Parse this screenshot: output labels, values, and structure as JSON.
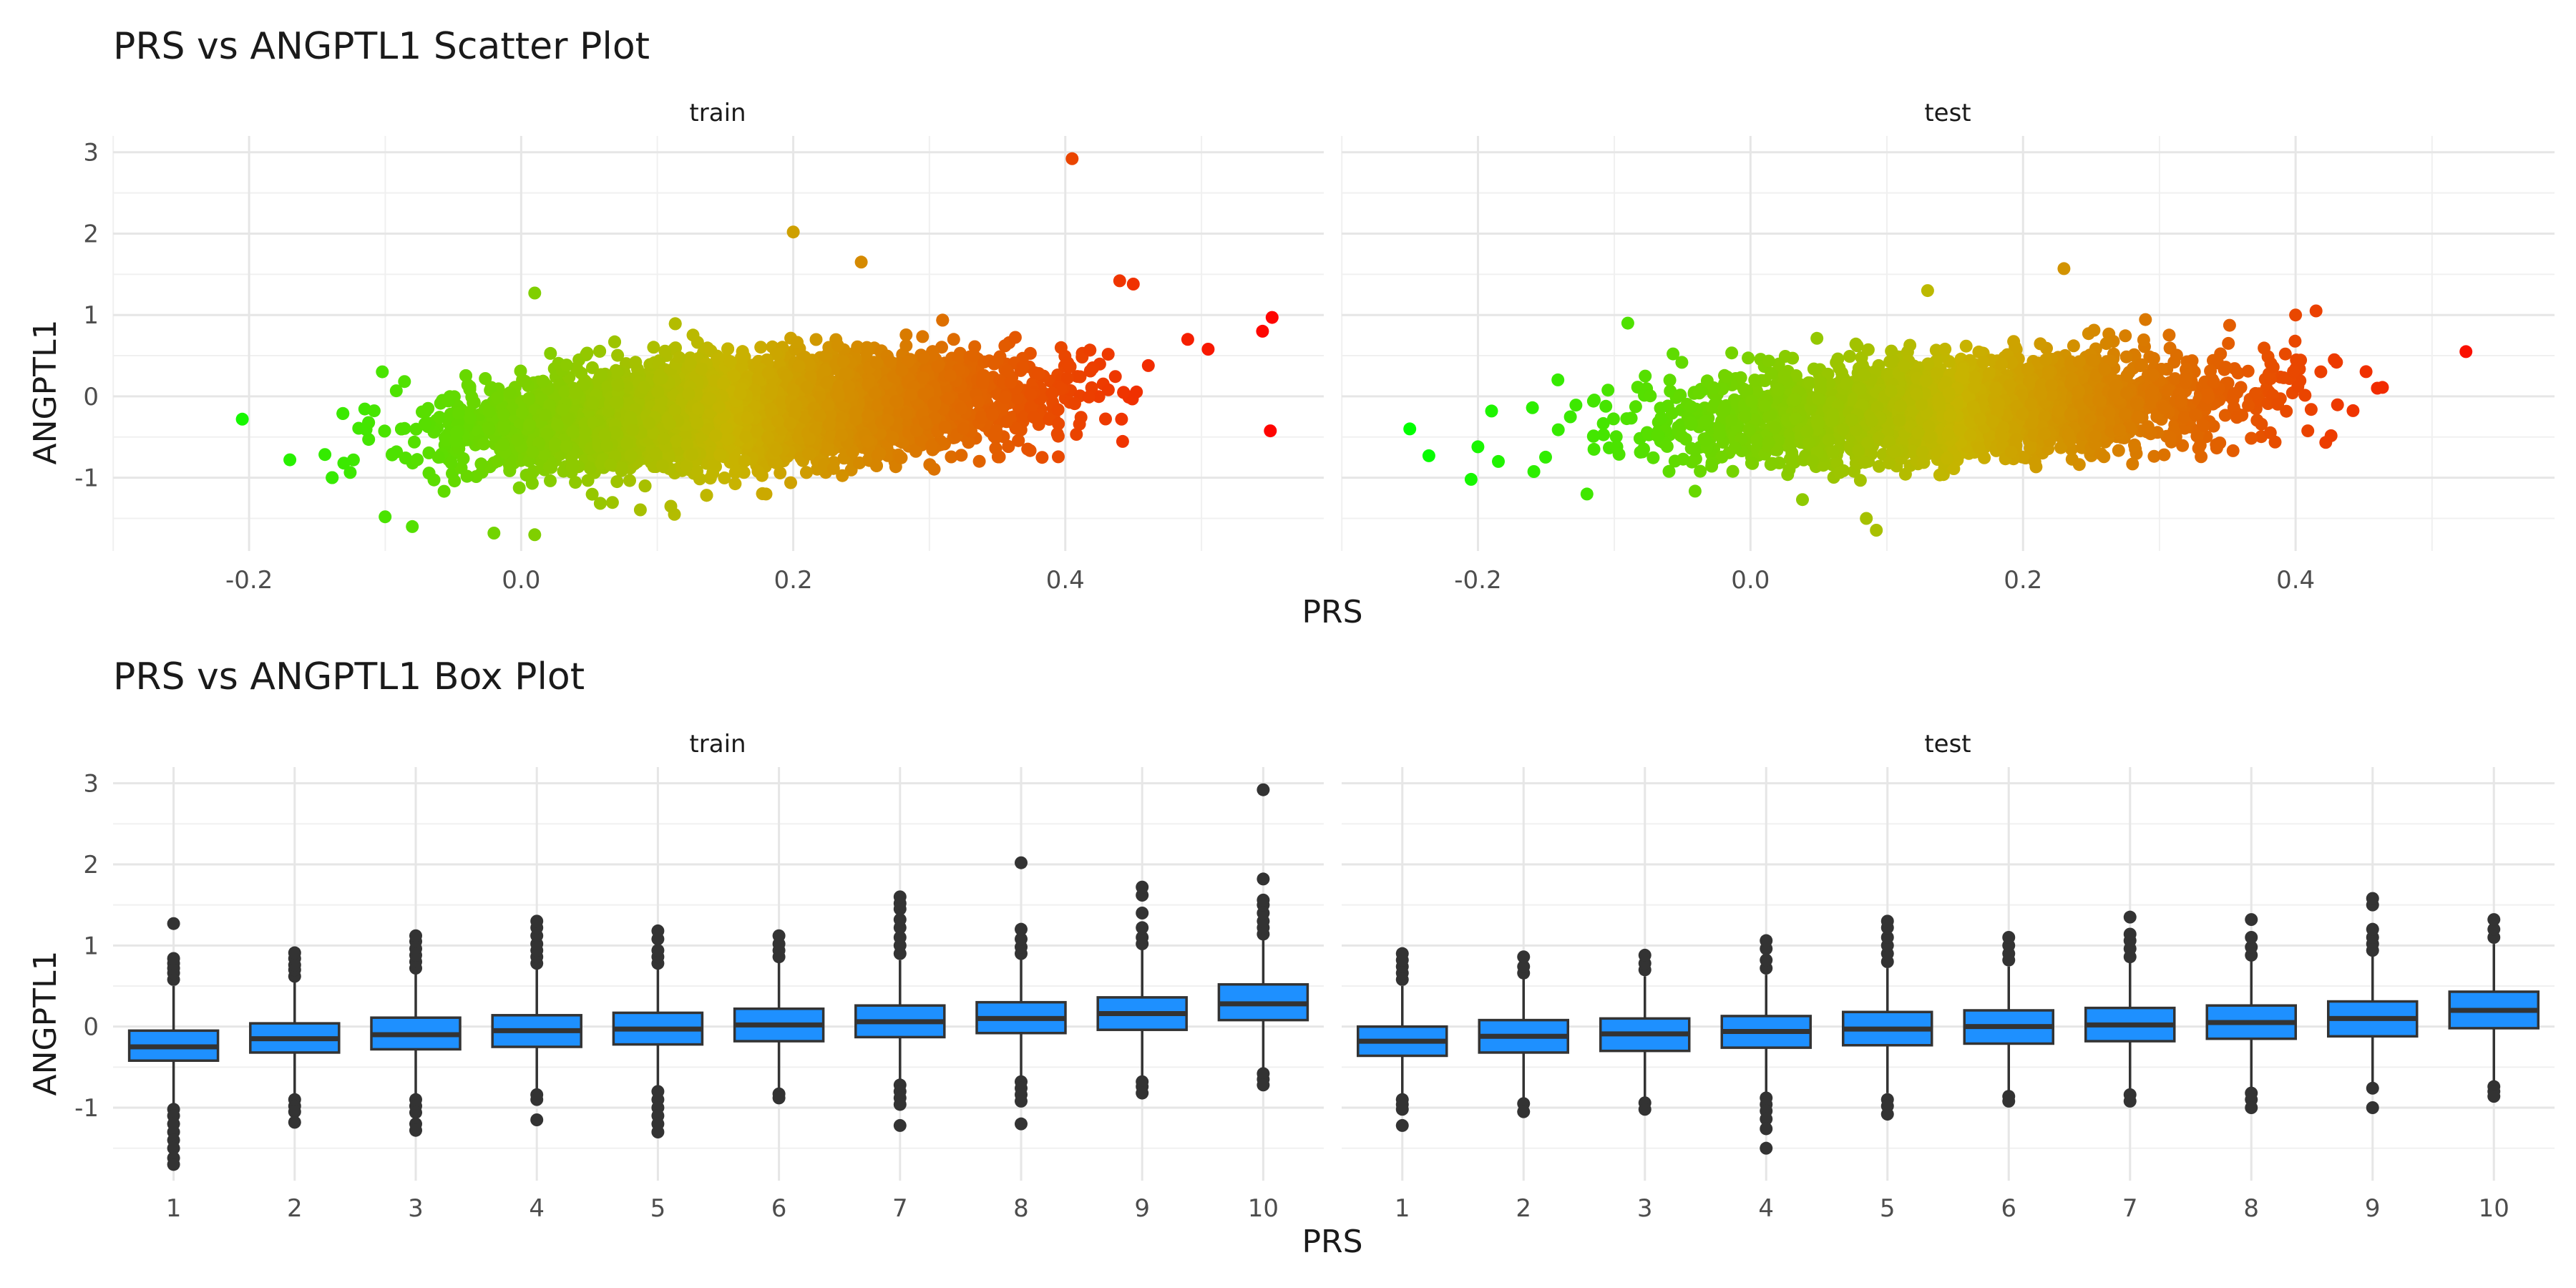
{
  "chart_data": [
    {
      "type": "scatter",
      "title": "PRS vs ANGPTL1 Scatter Plot",
      "xlabel": "PRS",
      "ylabel": "ANGPTL1",
      "xlim": [
        -0.3,
        0.59
      ],
      "ylim": [
        -1.9,
        3.2
      ],
      "xticks": [
        -0.2,
        0.0,
        0.2,
        0.4
      ],
      "xtick_labels": [
        "-0.2",
        "0.0",
        "0.2",
        "0.4"
      ],
      "yticks": [
        -1,
        0,
        1,
        2,
        3
      ],
      "ytick_labels": [
        "-1",
        "0",
        "1",
        "2",
        "3"
      ],
      "grid": true,
      "legend": "none",
      "color_scale": {
        "low": "#00ff00",
        "mid": "#c8b400",
        "high": "#ff0000",
        "by": "x"
      },
      "facets": [
        {
          "label": "train",
          "trend": {
            "slope": 1.9,
            "intercept": -0.35,
            "sd_y": 0.3,
            "x_mean": 0.17,
            "x_sd": 0.1
          },
          "highlight_points": [
            {
              "x": -0.205,
              "y": -0.28
            },
            {
              "x": -0.17,
              "y": -0.78
            },
            {
              "x": -0.1,
              "y": -1.48
            },
            {
              "x": -0.08,
              "y": -1.6
            },
            {
              "x": -0.02,
              "y": -1.68
            },
            {
              "x": 0.01,
              "y": -1.7
            },
            {
              "x": 0.01,
              "y": 1.27
            },
            {
              "x": 0.2,
              "y": 2.02
            },
            {
              "x": 0.405,
              "y": 2.92
            },
            {
              "x": 0.545,
              "y": 0.8
            },
            {
              "x": 0.552,
              "y": 0.97
            },
            {
              "x": 0.505,
              "y": 0.58
            },
            {
              "x": 0.49,
              "y": 0.7
            },
            {
              "x": 0.44,
              "y": 1.42
            },
            {
              "x": 0.45,
              "y": 1.38
            },
            {
              "x": 0.25,
              "y": 1.65
            },
            {
              "x": 0.18,
              "y": -1.2
            },
            {
              "x": 0.11,
              "y": -1.35
            }
          ]
        },
        {
          "label": "test",
          "trend": {
            "slope": 1.6,
            "intercept": -0.28,
            "sd_y": 0.3,
            "x_mean": 0.15,
            "x_sd": 0.1
          },
          "highlight_points": [
            {
              "x": -0.25,
              "y": -0.4
            },
            {
              "x": -0.236,
              "y": -0.73
            },
            {
              "x": -0.205,
              "y": -1.02
            },
            {
              "x": -0.2,
              "y": -0.62
            },
            {
              "x": -0.185,
              "y": -0.8
            },
            {
              "x": -0.19,
              "y": -0.18
            },
            {
              "x": -0.16,
              "y": -0.14
            },
            {
              "x": -0.12,
              "y": -1.2
            },
            {
              "x": -0.09,
              "y": 0.9
            },
            {
              "x": 0.085,
              "y": -1.5
            },
            {
              "x": 0.23,
              "y": 1.57
            },
            {
              "x": 0.13,
              "y": 1.3
            },
            {
              "x": 0.4,
              "y": 1.0
            },
            {
              "x": 0.415,
              "y": 1.05
            },
            {
              "x": 0.43,
              "y": 0.42
            },
            {
              "x": 0.46,
              "y": 0.1
            },
            {
              "x": 0.525,
              "y": 0.55
            },
            {
              "x": 0.33,
              "y": -0.6
            }
          ]
        }
      ]
    },
    {
      "type": "box",
      "title": "PRS vs ANGPTL1 Box Plot",
      "xlabel": "PRS",
      "ylabel": "ANGPTL1",
      "ylim": [
        -1.9,
        3.2
      ],
      "yticks": [
        -1,
        0,
        1,
        2,
        3
      ],
      "ytick_labels": [
        "-1",
        "0",
        "1",
        "2",
        "3"
      ],
      "categories": [
        "1",
        "2",
        "3",
        "4",
        "5",
        "6",
        "7",
        "8",
        "9",
        "10"
      ],
      "box_color": "#1e90ff",
      "grid": true,
      "facets": [
        {
          "label": "train",
          "boxes": [
            {
              "q1": -0.42,
              "median": -0.25,
              "q3": -0.05,
              "whisker_low": -0.98,
              "whisker_high": 0.5,
              "outliers": [
                -1.02,
                -1.1,
                -1.2,
                -1.3,
                -1.4,
                -1.5,
                -1.62,
                -1.7,
                0.58,
                0.66,
                0.72,
                0.78,
                0.84,
                1.27
              ]
            },
            {
              "q1": -0.32,
              "median": -0.15,
              "q3": 0.04,
              "whisker_low": -0.85,
              "whisker_high": 0.56,
              "outliers": [
                -0.9,
                -0.98,
                -1.05,
                -1.18,
                0.62,
                0.7,
                0.76,
                0.84,
                0.91
              ]
            },
            {
              "q1": -0.28,
              "median": -0.1,
              "q3": 0.11,
              "whisker_low": -0.86,
              "whisker_high": 0.66,
              "outliers": [
                -0.9,
                -0.98,
                -1.06,
                -1.2,
                -1.28,
                0.72,
                0.8,
                0.88,
                0.96,
                1.05,
                1.12
              ]
            },
            {
              "q1": -0.25,
              "median": -0.05,
              "q3": 0.14,
              "whisker_low": -0.8,
              "whisker_high": 0.72,
              "outliers": [
                -0.84,
                -0.9,
                -1.15,
                0.78,
                0.86,
                0.94,
                1.02,
                1.12,
                1.22,
                1.3
              ]
            },
            {
              "q1": -0.22,
              "median": -0.03,
              "q3": 0.17,
              "whisker_low": -0.75,
              "whisker_high": 0.72,
              "outliers": [
                -0.8,
                -0.9,
                -1.0,
                -1.1,
                -1.2,
                -1.3,
                0.78,
                0.86,
                0.94,
                1.08,
                1.18
              ]
            },
            {
              "q1": -0.18,
              "median": 0.02,
              "q3": 0.22,
              "whisker_low": -0.78,
              "whisker_high": 0.8,
              "outliers": [
                -0.83,
                -0.88,
                0.86,
                0.94,
                1.02,
                1.12
              ]
            },
            {
              "q1": -0.13,
              "median": 0.06,
              "q3": 0.26,
              "whisker_low": -0.68,
              "whisker_high": 0.82,
              "outliers": [
                -0.72,
                -0.8,
                -0.88,
                -0.96,
                -1.22,
                0.9,
                1.0,
                1.1,
                1.22,
                1.32,
                1.45,
                1.52,
                1.6
              ]
            },
            {
              "q1": -0.08,
              "median": 0.1,
              "q3": 0.3,
              "whisker_low": -0.62,
              "whisker_high": 0.84,
              "outliers": [
                -0.68,
                -0.76,
                -0.84,
                -0.92,
                -1.2,
                0.9,
                0.98,
                1.08,
                1.2,
                2.02
              ]
            },
            {
              "q1": -0.04,
              "median": 0.16,
              "q3": 0.36,
              "whisker_low": -0.62,
              "whisker_high": 0.95,
              "outliers": [
                -0.68,
                -0.74,
                -0.82,
                1.02,
                1.1,
                1.22,
                1.4,
                1.62,
                1.72
              ]
            },
            {
              "q1": 0.08,
              "median": 0.28,
              "q3": 0.52,
              "whisker_low": -0.52,
              "whisker_high": 1.08,
              "outliers": [
                -0.58,
                -0.65,
                -0.72,
                1.14,
                1.22,
                1.3,
                1.4,
                1.5,
                1.56,
                1.82,
                2.92
              ]
            }
          ]
        },
        {
          "label": "test",
          "boxes": [
            {
              "q1": -0.36,
              "median": -0.18,
              "q3": 0.0,
              "whisker_low": -0.86,
              "whisker_high": 0.5,
              "outliers": [
                -0.9,
                -0.96,
                -1.02,
                -1.22,
                0.58,
                0.66,
                0.74,
                0.82,
                0.9
              ]
            },
            {
              "q1": -0.32,
              "median": -0.12,
              "q3": 0.08,
              "whisker_low": -0.9,
              "whisker_high": 0.6,
              "outliers": [
                -0.95,
                -1.05,
                0.66,
                0.74,
                0.86
              ]
            },
            {
              "q1": -0.3,
              "median": -0.09,
              "q3": 0.1,
              "whisker_low": -0.88,
              "whisker_high": 0.62,
              "outliers": [
                -0.94,
                -1.02,
                0.7,
                0.78,
                0.88
              ]
            },
            {
              "q1": -0.26,
              "median": -0.06,
              "q3": 0.13,
              "whisker_low": -0.82,
              "whisker_high": 0.64,
              "outliers": [
                -0.88,
                -0.96,
                -1.04,
                -1.14,
                -1.26,
                -1.5,
                0.72,
                0.82,
                0.96,
                1.06
              ]
            },
            {
              "q1": -0.23,
              "median": -0.03,
              "q3": 0.18,
              "whisker_low": -0.82,
              "whisker_high": 0.72,
              "outliers": [
                -0.9,
                -0.98,
                -1.08,
                0.8,
                0.9,
                1.0,
                1.1,
                1.22,
                1.3
              ]
            },
            {
              "q1": -0.21,
              "median": 0.0,
              "q3": 0.2,
              "whisker_low": -0.82,
              "whisker_high": 0.74,
              "outliers": [
                -0.86,
                -0.92,
                0.82,
                0.9,
                1.0,
                1.1
              ]
            },
            {
              "q1": -0.18,
              "median": 0.02,
              "q3": 0.23,
              "whisker_low": -0.8,
              "whisker_high": 0.8,
              "outliers": [
                -0.84,
                -0.92,
                0.86,
                0.96,
                1.06,
                1.14,
                1.35
              ]
            },
            {
              "q1": -0.15,
              "median": 0.05,
              "q3": 0.26,
              "whisker_low": -0.78,
              "whisker_high": 0.82,
              "outliers": [
                -0.82,
                -0.9,
                -1.0,
                0.88,
                0.98,
                1.1,
                1.32
              ]
            },
            {
              "q1": -0.12,
              "median": 0.1,
              "q3": 0.31,
              "whisker_low": -0.72,
              "whisker_high": 0.88,
              "outliers": [
                -0.76,
                -1.0,
                0.94,
                1.02,
                1.1,
                1.2,
                1.5,
                1.58
              ]
            },
            {
              "q1": -0.02,
              "median": 0.2,
              "q3": 0.43,
              "whisker_low": -0.68,
              "whisker_high": 1.02,
              "outliers": [
                -0.74,
                -0.8,
                -0.86,
                1.1,
                1.2,
                1.32
              ]
            }
          ]
        }
      ]
    }
  ]
}
